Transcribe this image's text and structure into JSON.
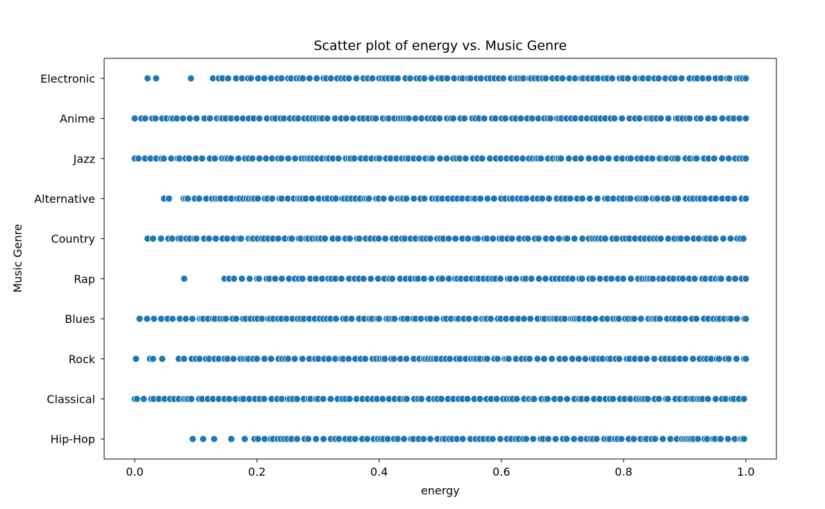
{
  "chart_data": {
    "type": "scatter",
    "title": "Scatter plot of energy vs. Music Genre",
    "xlabel": "energy",
    "ylabel": "Music Genre",
    "xlim": [
      -0.05,
      1.05
    ],
    "xticks": [
      0.0,
      0.2,
      0.4,
      0.6,
      0.8,
      1.0
    ],
    "xtick_labels": [
      "0.0",
      "0.2",
      "0.4",
      "0.6",
      "0.8",
      "1.0"
    ],
    "categories": [
      "Electronic",
      "Anime",
      "Jazz",
      "Alternative",
      "Country",
      "Rap",
      "Blues",
      "Rock",
      "Classical",
      "Hip-Hop"
    ],
    "grid": false,
    "marker_color": "#1f77b4",
    "marker_edge_color": "#ffffff",
    "series": [
      {
        "category": "Electronic",
        "isolated": [
          0.021,
          0.035,
          0.092
        ],
        "dense_range": [
          0.128,
          1.0
        ]
      },
      {
        "category": "Anime",
        "isolated": [],
        "dense_range": [
          0.0,
          1.0
        ]
      },
      {
        "category": "Jazz",
        "isolated": [],
        "dense_range": [
          0.0,
          1.0
        ]
      },
      {
        "category": "Alternative",
        "isolated": [
          0.048,
          0.056
        ],
        "dense_range": [
          0.08,
          1.0
        ]
      },
      {
        "category": "Country",
        "isolated": [
          0.021,
          0.03,
          0.043
        ],
        "dense_range": [
          0.055,
          0.996
        ]
      },
      {
        "category": "Rap",
        "isolated": [
          0.081
        ],
        "dense_range": [
          0.147,
          1.0
        ]
      },
      {
        "category": "Blues",
        "isolated": [],
        "dense_range": [
          0.008,
          1.0
        ]
      },
      {
        "category": "Rock",
        "isolated": [
          0.002,
          0.025,
          0.03,
          0.045
        ],
        "dense_range": [
          0.072,
          1.0
        ]
      },
      {
        "category": "Classical",
        "isolated": [],
        "dense_range": [
          0.0,
          0.997
        ]
      },
      {
        "category": "Hip-Hop",
        "isolated": [
          0.095,
          0.112,
          0.13,
          0.158,
          0.18
        ],
        "dense_range": [
          0.196,
          0.997
        ]
      }
    ]
  }
}
